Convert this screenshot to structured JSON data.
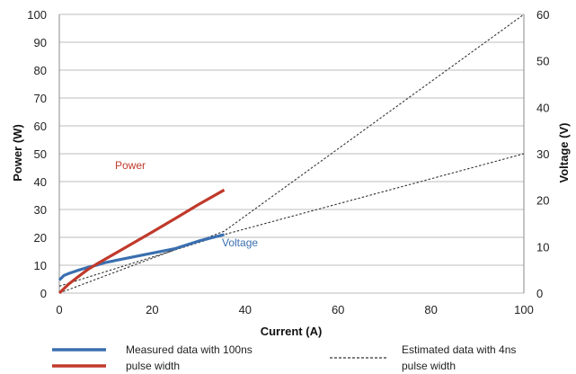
{
  "chart_data": {
    "type": "line",
    "xlabel": "Current (A)",
    "ylabel": "Power (W)",
    "y2label": "Voltage (V)",
    "xlim": [
      0,
      100
    ],
    "ylim": [
      0,
      100
    ],
    "y2lim": [
      0,
      60
    ],
    "x_ticks": [
      "0",
      "20",
      "40",
      "60",
      "80",
      "100"
    ],
    "y_ticks": [
      "0",
      "10",
      "20",
      "30",
      "40",
      "50",
      "60",
      "70",
      "80",
      "90",
      "100"
    ],
    "y2_ticks": [
      "0",
      "10",
      "20",
      "30",
      "40",
      "50",
      "60"
    ],
    "grid": "horizontal",
    "colors": {
      "power": "#c0392b",
      "voltage": "#3a6fb0",
      "estimated": "#333333",
      "grid": "#bdbdbd"
    },
    "annotations": [
      {
        "text": "Power",
        "color": "#c0392b"
      },
      {
        "text": "Voltage",
        "color": "#3a6fb0"
      }
    ],
    "series": [
      {
        "name": "Power",
        "axis": "left",
        "style": "solid",
        "x": [
          0,
          2,
          4,
          6,
          8,
          10,
          15,
          20,
          25,
          30,
          35.5
        ],
        "y": [
          0,
          3.2,
          5.8,
          8.3,
          10.4,
          12.3,
          17.1,
          21.9,
          26.8,
          31.8,
          37
        ]
      },
      {
        "name": "Voltage",
        "axis": "right",
        "style": "solid",
        "x": [
          0,
          1,
          2,
          4,
          6,
          8,
          10,
          15,
          20,
          25,
          30,
          35.5
        ],
        "y": [
          2.8,
          3.8,
          4.2,
          4.9,
          5.5,
          6.0,
          6.6,
          7.6,
          8.6,
          9.6,
          11.2,
          12.6
        ]
      },
      {
        "name": "",
        "axis": "left",
        "style": "dashed",
        "x": [
          0,
          35.5,
          100
        ],
        "y": [
          0,
          22.2,
          100
        ]
      },
      {
        "name": "",
        "axis": "right",
        "style": "dashed",
        "x": [
          0,
          35.5,
          100
        ],
        "y": [
          1.5,
          12.6,
          30
        ]
      }
    ],
    "legend": {
      "position": "bottom",
      "measured_line1": "Measured data with 100ns",
      "measured_line2": "pulse width",
      "estimated_line1": "Estimated data with 4ns",
      "estimated_line2": "pulse width"
    }
  }
}
